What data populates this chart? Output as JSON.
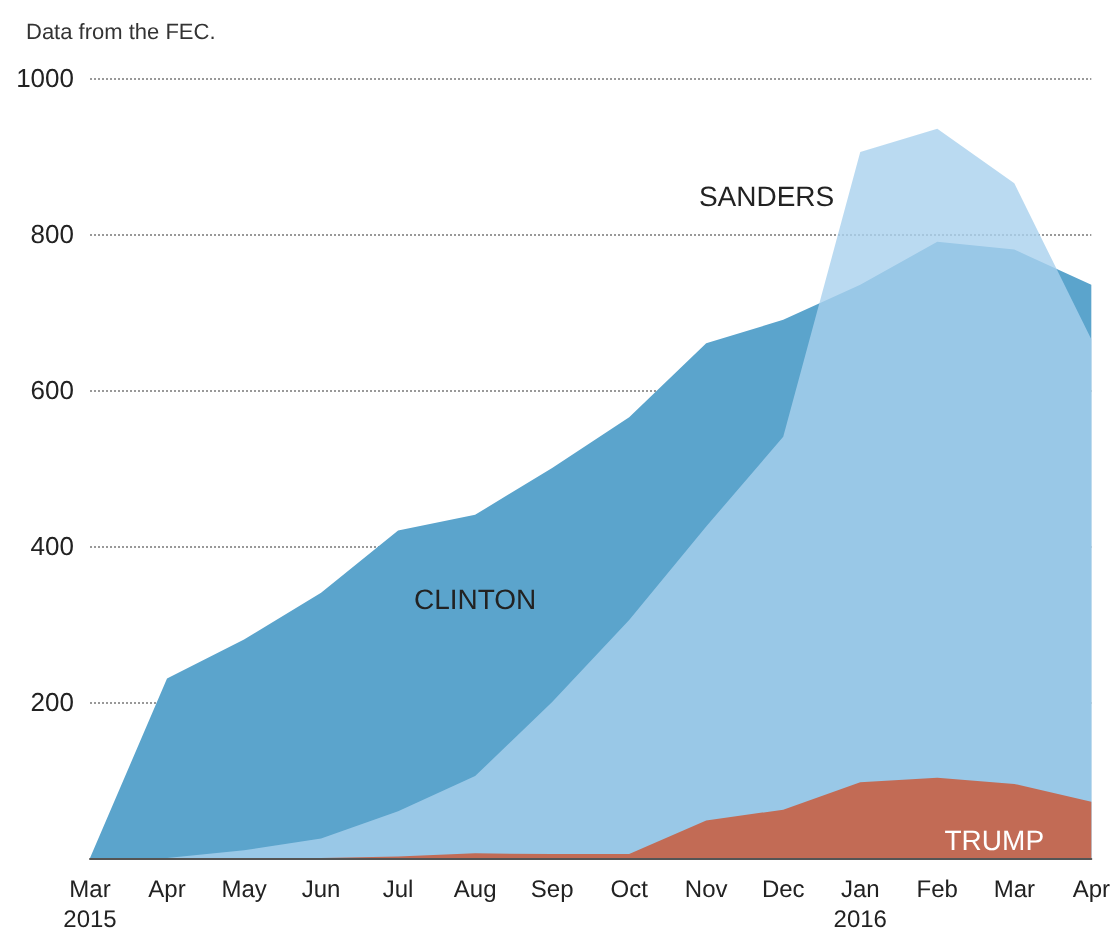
{
  "chart_data": {
    "type": "area",
    "subtitle": "Data from the FEC.",
    "categories": [
      "Mar\n2015",
      "Apr",
      "May",
      "Jun",
      "Jul",
      "Aug",
      "Sep",
      "Oct",
      "Nov",
      "Dec",
      "Jan\n2016",
      "Feb",
      "Mar",
      "Apr"
    ],
    "series": [
      {
        "name": "CLINTON",
        "color": "#5ba4cc",
        "values": [
          0,
          230,
          280,
          340,
          420,
          440,
          500,
          565,
          660,
          690,
          735,
          790,
          780,
          735
        ]
      },
      {
        "name": "SANDERS",
        "color": "#a9d1ee",
        "values": [
          0,
          0,
          10,
          25,
          60,
          105,
          200,
          305,
          425,
          540,
          905,
          935,
          865,
          665
        ]
      },
      {
        "name": "TRUMP",
        "color": "#c26b55",
        "values": [
          0,
          0,
          0,
          0,
          2,
          6,
          5,
          5,
          48,
          62,
          97,
          103,
          95,
          72
        ]
      }
    ],
    "ylim": [
      0,
      1000
    ],
    "yticks": [
      {
        "value": 0,
        "label": null
      },
      200,
      400,
      600,
      800,
      1000
    ],
    "grid": "y",
    "legend": false
  }
}
